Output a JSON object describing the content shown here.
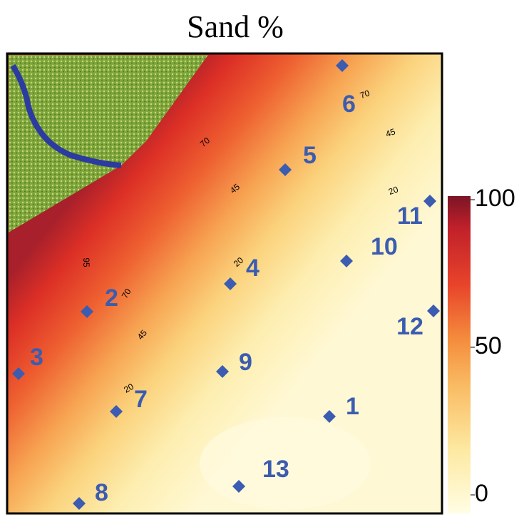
{
  "title": "Sand %",
  "colorbar": {
    "lim": [
      0,
      100
    ],
    "ticks": [
      0,
      50,
      100
    ]
  },
  "contour_labels": [
    95,
    70,
    45,
    20,
    70,
    45,
    20,
    70,
    45,
    20
  ],
  "points": [
    "1",
    "2",
    "3",
    "4",
    "5",
    "6",
    "7",
    "8",
    "9",
    "10",
    "11",
    "12",
    "13"
  ]
}
